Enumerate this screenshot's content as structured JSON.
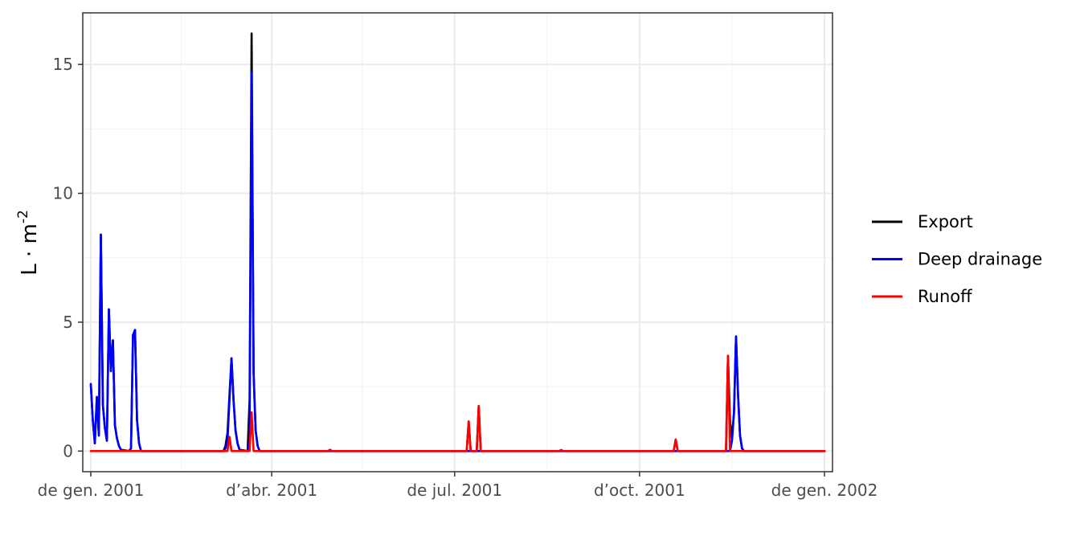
{
  "chart_data": {
    "type": "line",
    "title": "",
    "xlabel": "",
    "ylabel": "L·m⁻²",
    "ylabel_base": "L · m",
    "ylabel_exp": "-2",
    "x_type": "date",
    "xlim": [
      "2000-12-28",
      "2002-01-05"
    ],
    "ylim": [
      -0.8,
      17.0
    ],
    "x_ticks": [
      {
        "date": "2001-01-01",
        "label": "de gen. 2001"
      },
      {
        "date": "2001-04-01",
        "label": "d’abr. 2001"
      },
      {
        "date": "2001-07-01",
        "label": "de jul. 2001"
      },
      {
        "date": "2001-10-01",
        "label": "d’oct. 2001"
      },
      {
        "date": "2002-01-01",
        "label": "de gen. 2002"
      }
    ],
    "x_minor_ticks": [
      "2001-02-15",
      "2001-05-16",
      "2001-08-16",
      "2001-11-16"
    ],
    "y_ticks": [
      0,
      5,
      10,
      15
    ],
    "y_minor_ticks": [
      2.5,
      7.5,
      12.5
    ],
    "grid": true,
    "legend_position": "right",
    "series": [
      {
        "name": "Export",
        "color": "#000000",
        "points": [
          [
            "2001-01-01",
            2.6
          ],
          [
            "2001-01-02",
            1.2
          ],
          [
            "2001-01-03",
            0.3
          ],
          [
            "2001-01-04",
            2.1
          ],
          [
            "2001-01-05",
            0.6
          ],
          [
            "2001-01-06",
            8.4
          ],
          [
            "2001-01-07",
            1.8
          ],
          [
            "2001-01-08",
            0.9
          ],
          [
            "2001-01-09",
            0.4
          ],
          [
            "2001-01-10",
            5.5
          ],
          [
            "2001-01-11",
            3.1
          ],
          [
            "2001-01-12",
            4.3
          ],
          [
            "2001-01-13",
            1.0
          ],
          [
            "2001-01-14",
            0.5
          ],
          [
            "2001-01-15",
            0.2
          ],
          [
            "2001-01-16",
            0.05
          ],
          [
            "2001-01-20",
            0.0
          ],
          [
            "2001-01-21",
            0.1
          ],
          [
            "2001-01-22",
            4.5
          ],
          [
            "2001-01-23",
            4.7
          ],
          [
            "2001-01-24",
            1.2
          ],
          [
            "2001-01-25",
            0.3
          ],
          [
            "2001-01-26",
            0.0
          ],
          [
            "2001-03-08",
            0.0
          ],
          [
            "2001-03-09",
            0.2
          ],
          [
            "2001-03-10",
            0.7
          ],
          [
            "2001-03-11",
            2.2
          ],
          [
            "2001-03-12",
            3.6
          ],
          [
            "2001-03-13",
            2.0
          ],
          [
            "2001-03-14",
            0.8
          ],
          [
            "2001-03-15",
            0.3
          ],
          [
            "2001-03-16",
            0.05
          ],
          [
            "2001-03-20",
            0.0
          ],
          [
            "2001-03-21",
            2.0
          ],
          [
            "2001-03-22",
            16.2
          ],
          [
            "2001-03-23",
            3.0
          ],
          [
            "2001-03-24",
            0.8
          ],
          [
            "2001-03-25",
            0.2
          ],
          [
            "2001-03-26",
            0.0
          ],
          [
            "2001-04-29",
            0.0
          ],
          [
            "2001-04-30",
            0.05
          ],
          [
            "2001-05-01",
            0.0
          ],
          [
            "2001-07-07",
            0.0
          ],
          [
            "2001-07-08",
            1.15
          ],
          [
            "2001-07-09",
            0.0
          ],
          [
            "2001-07-12",
            0.0
          ],
          [
            "2001-07-13",
            1.75
          ],
          [
            "2001-07-14",
            0.0
          ],
          [
            "2001-08-22",
            0.0
          ],
          [
            "2001-08-23",
            0.04
          ],
          [
            "2001-08-24",
            0.0
          ],
          [
            "2001-10-18",
            0.0
          ],
          [
            "2001-10-19",
            0.45
          ],
          [
            "2001-10-20",
            0.0
          ],
          [
            "2001-11-13",
            0.0
          ],
          [
            "2001-11-14",
            3.7
          ],
          [
            "2001-11-15",
            1.2
          ],
          [
            "2001-11-16",
            0.5
          ],
          [
            "2001-11-17",
            1.5
          ],
          [
            "2001-11-18",
            4.45
          ],
          [
            "2001-11-19",
            2.2
          ],
          [
            "2001-11-20",
            0.6
          ],
          [
            "2001-11-21",
            0.1
          ],
          [
            "2001-11-22",
            0.0
          ],
          [
            "2002-01-01",
            0.0
          ]
        ]
      },
      {
        "name": "Deep drainage",
        "color": "#0000ff",
        "points": [
          [
            "2001-01-01",
            2.6
          ],
          [
            "2001-01-02",
            1.2
          ],
          [
            "2001-01-03",
            0.3
          ],
          [
            "2001-01-04",
            2.1
          ],
          [
            "2001-01-05",
            0.6
          ],
          [
            "2001-01-06",
            8.4
          ],
          [
            "2001-01-07",
            1.8
          ],
          [
            "2001-01-08",
            0.9
          ],
          [
            "2001-01-09",
            0.4
          ],
          [
            "2001-01-10",
            5.5
          ],
          [
            "2001-01-11",
            3.1
          ],
          [
            "2001-01-12",
            4.3
          ],
          [
            "2001-01-13",
            1.0
          ],
          [
            "2001-01-14",
            0.5
          ],
          [
            "2001-01-15",
            0.2
          ],
          [
            "2001-01-16",
            0.05
          ],
          [
            "2001-01-20",
            0.0
          ],
          [
            "2001-01-21",
            0.1
          ],
          [
            "2001-01-22",
            4.5
          ],
          [
            "2001-01-23",
            4.7
          ],
          [
            "2001-01-24",
            1.2
          ],
          [
            "2001-01-25",
            0.3
          ],
          [
            "2001-01-26",
            0.0
          ],
          [
            "2001-03-08",
            0.0
          ],
          [
            "2001-03-09",
            0.1
          ],
          [
            "2001-03-10",
            0.4
          ],
          [
            "2001-03-11",
            2.0
          ],
          [
            "2001-03-12",
            3.6
          ],
          [
            "2001-03-13",
            2.0
          ],
          [
            "2001-03-14",
            0.8
          ],
          [
            "2001-03-15",
            0.3
          ],
          [
            "2001-03-16",
            0.05
          ],
          [
            "2001-03-20",
            0.0
          ],
          [
            "2001-03-21",
            0.5
          ],
          [
            "2001-03-22",
            14.7
          ],
          [
            "2001-03-23",
            3.0
          ],
          [
            "2001-03-24",
            0.8
          ],
          [
            "2001-03-25",
            0.2
          ],
          [
            "2001-03-26",
            0.0
          ],
          [
            "2001-11-15",
            0.0
          ],
          [
            "2001-11-16",
            0.4
          ],
          [
            "2001-11-17",
            1.5
          ],
          [
            "2001-11-18",
            4.45
          ],
          [
            "2001-11-19",
            2.2
          ],
          [
            "2001-11-20",
            0.6
          ],
          [
            "2001-11-21",
            0.1
          ],
          [
            "2001-11-22",
            0.0
          ],
          [
            "2002-01-01",
            0.0
          ]
        ]
      },
      {
        "name": "Runoff",
        "color": "#ff0000",
        "points": [
          [
            "2001-01-01",
            0.0
          ],
          [
            "2001-03-10",
            0.0
          ],
          [
            "2001-03-11",
            0.55
          ],
          [
            "2001-03-12",
            0.0
          ],
          [
            "2001-03-21",
            0.0
          ],
          [
            "2001-03-22",
            1.5
          ],
          [
            "2001-03-23",
            0.0
          ],
          [
            "2001-04-29",
            0.0
          ],
          [
            "2001-04-30",
            0.05
          ],
          [
            "2001-05-01",
            0.0
          ],
          [
            "2001-07-07",
            0.0
          ],
          [
            "2001-07-08",
            1.15
          ],
          [
            "2001-07-09",
            0.0
          ],
          [
            "2001-07-12",
            0.0
          ],
          [
            "2001-07-13",
            1.75
          ],
          [
            "2001-07-14",
            0.0
          ],
          [
            "2001-08-22",
            0.0
          ],
          [
            "2001-08-23",
            0.04
          ],
          [
            "2001-08-24",
            0.0
          ],
          [
            "2001-10-18",
            0.0
          ],
          [
            "2001-10-19",
            0.45
          ],
          [
            "2001-10-20",
            0.0
          ],
          [
            "2001-11-13",
            0.0
          ],
          [
            "2001-11-14",
            3.7
          ],
          [
            "2001-11-15",
            0.0
          ],
          [
            "2002-01-01",
            0.0
          ]
        ]
      }
    ]
  }
}
